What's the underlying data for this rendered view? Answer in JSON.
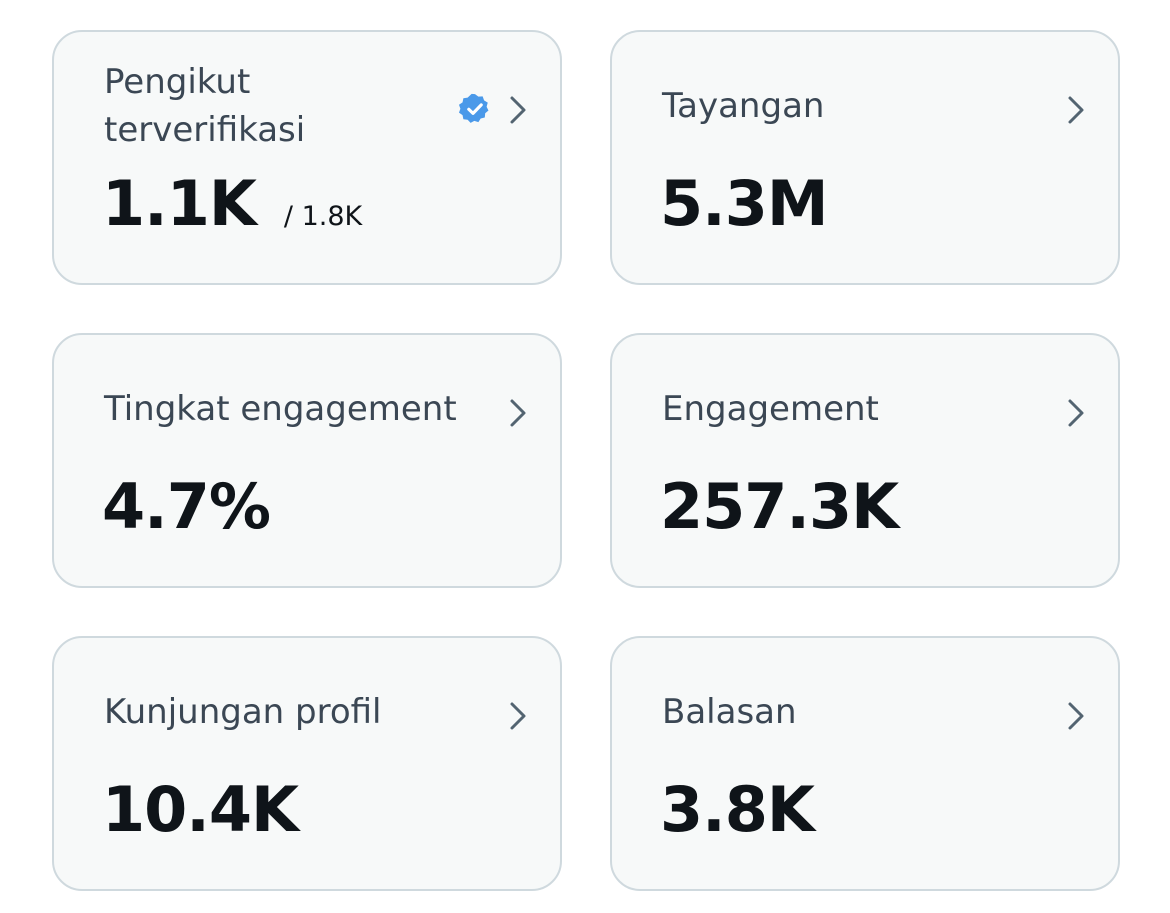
{
  "cards": [
    {
      "label": "Pengikut terverifikasi",
      "value": "1.1K",
      "total": "/ 1.8K",
      "verified": true
    },
    {
      "label": "Tayangan",
      "value": "5.3M"
    },
    {
      "label": "Tingkat engagement",
      "value": "4.7%"
    },
    {
      "label": "Engagement",
      "value": "257.3K"
    },
    {
      "label": "Kunjungan profil",
      "value": "10.4K"
    },
    {
      "label": "Balasan",
      "value": "3.8K"
    }
  ]
}
